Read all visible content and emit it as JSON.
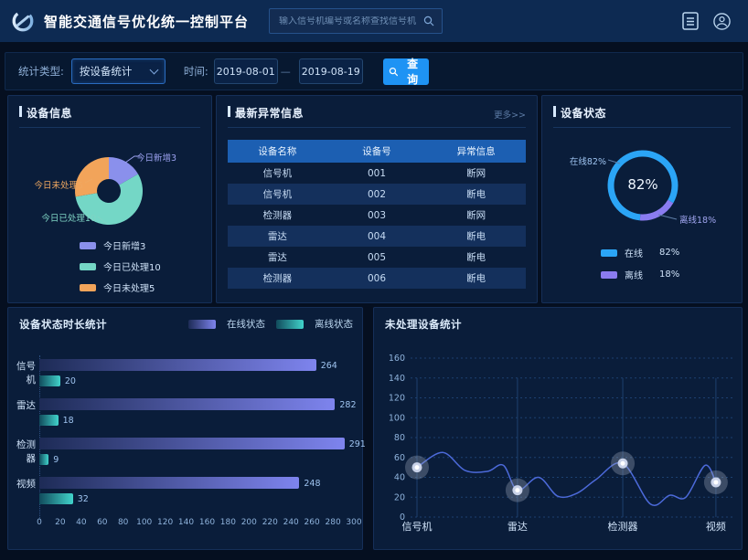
{
  "header": {
    "title": "智能交通信号优化统一控制平台",
    "search_placeholder": "输入信号机编号或名称查找信号机"
  },
  "filters": {
    "type_label": "统计类型:",
    "type_value": "按设备统计",
    "time_label": "时间:",
    "date_from": "2019-08-01",
    "date_to": "2019-08-19",
    "query_label": "查询"
  },
  "panels": {
    "device_info": {
      "title": "设备信息"
    },
    "abnormal": {
      "title": "最新异常信息",
      "more_label": "更多>>",
      "table": {
        "headers": [
          "设备名称",
          "设备号",
          "异常信息"
        ],
        "rows": [
          [
            "信号机",
            "001",
            "断网"
          ],
          [
            "信号机",
            "002",
            "断电"
          ],
          [
            "检测器",
            "003",
            "断网"
          ],
          [
            "雷达",
            "004",
            "断电"
          ],
          [
            "雷达",
            "005",
            "断电"
          ],
          [
            "检测器",
            "006",
            "断电"
          ]
        ]
      }
    },
    "device_status": {
      "title": "设备状态"
    },
    "duration": {
      "title": "设备状态时长统计"
    },
    "unprocessed": {
      "title": "未处理设备统计"
    }
  },
  "chart_data": [
    {
      "id": "device-info-donut",
      "type": "pie",
      "labels": [
        "今日新增",
        "今日已处理",
        "今日未处理"
      ],
      "values": [
        3,
        10,
        5
      ],
      "legend_labels": [
        "今日新增3",
        "今日已处理10",
        "今日未处理5"
      ],
      "callout_new": "今日新增3",
      "callout_unprocessed": "今日未处理5",
      "callout_processed": "今日已处理10",
      "colors": [
        "#8a90ec",
        "#74d7c6",
        "#f2a45a"
      ]
    },
    {
      "id": "device-status-ring",
      "type": "pie",
      "labels": [
        "在线",
        "离线"
      ],
      "values": [
        82,
        18
      ],
      "legend_values": [
        "82%",
        "18%"
      ],
      "center_label": "82%",
      "callout_online": "在线82%",
      "callout_offline": "离线18%",
      "colors": [
        "#2ba5f6",
        "#8a7cf0"
      ]
    },
    {
      "id": "status-duration-bars",
      "type": "bar",
      "orientation": "horizontal",
      "categories": [
        "信号机",
        "雷达",
        "检测器",
        "视频"
      ],
      "series": [
        {
          "name": "在线状态",
          "values": [
            264,
            282,
            291,
            248
          ]
        },
        {
          "name": "离线状态",
          "values": [
            20,
            18,
            9,
            32
          ]
        }
      ],
      "xlim": [
        0,
        300
      ],
      "x_ticks": [
        0,
        20,
        40,
        60,
        80,
        100,
        120,
        140,
        160,
        180,
        200,
        220,
        240,
        260,
        280,
        300
      ],
      "colors": [
        "#7e84ee",
        "#41d3cb"
      ],
      "colors_start": [
        "#1d2b56",
        "#114b5c"
      ]
    },
    {
      "id": "unprocessed-line",
      "type": "line",
      "categories": [
        "信号机",
        "雷达",
        "检测器",
        "视频"
      ],
      "values": [
        50,
        27,
        54,
        35
      ],
      "x_positions": [
        0.02,
        0.334,
        0.663,
        0.954
      ],
      "ylim": [
        0,
        160
      ],
      "y_ticks": [
        0,
        20,
        40,
        60,
        80,
        100,
        120,
        140,
        160
      ],
      "line_color": "#4c6ada",
      "curve": [
        [
          0.02,
          50
        ],
        [
          0.1,
          65
        ],
        [
          0.17,
          47
        ],
        [
          0.24,
          46
        ],
        [
          0.29,
          52
        ],
        [
          0.334,
          27
        ],
        [
          0.4,
          40
        ],
        [
          0.46,
          21
        ],
        [
          0.52,
          24
        ],
        [
          0.58,
          38
        ],
        [
          0.663,
          54
        ],
        [
          0.75,
          13
        ],
        [
          0.81,
          22
        ],
        [
          0.86,
          20
        ],
        [
          0.92,
          52
        ],
        [
          0.954,
          35
        ]
      ]
    }
  ]
}
